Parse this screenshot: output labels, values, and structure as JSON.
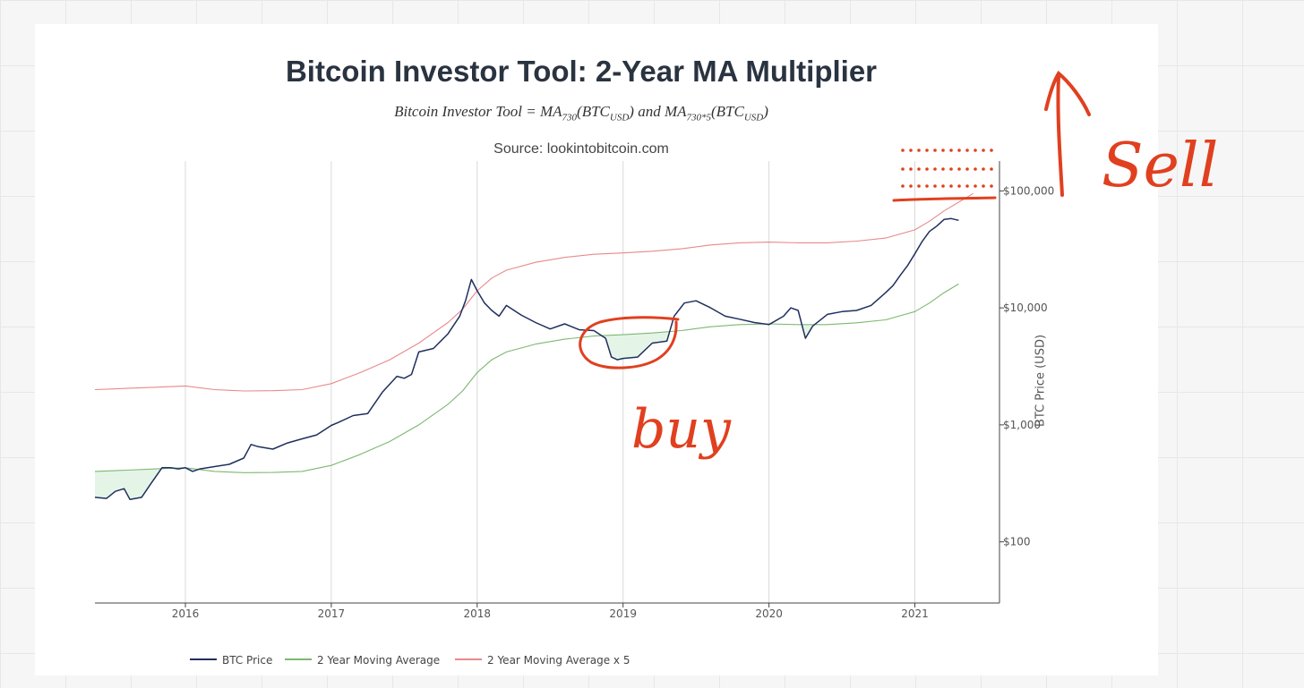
{
  "chart_data": {
    "type": "line",
    "title": "Bitcoin Investor Tool: 2-Year MA Multiplier",
    "subtitle": "Bitcoin Investor Tool = MA730(BTCUSD) and MA730*5(BTCUSD)",
    "source": "Source: lookintobitcoin.com",
    "ylabel": "BTC Price (USD)",
    "yscale": "log",
    "ylim": [
      30,
      180000
    ],
    "xlim": [
      2015.38,
      2021.58
    ],
    "x_ticks": [
      {
        "value": 2016,
        "label": "2016"
      },
      {
        "value": 2017,
        "label": "2017"
      },
      {
        "value": 2018,
        "label": "2018"
      },
      {
        "value": 2019,
        "label": "2019"
      },
      {
        "value": 2020,
        "label": "2020"
      },
      {
        "value": 2021,
        "label": "2021"
      }
    ],
    "y_ticks": [
      {
        "value": 100,
        "label": "$100"
      },
      {
        "value": 1000,
        "label": "$1,000"
      },
      {
        "value": 10000,
        "label": "$10,000"
      },
      {
        "value": 100000,
        "label": "$100,000"
      }
    ],
    "series": [
      {
        "name": "BTC Price",
        "color": "#1f2f5e",
        "x": [
          2015.38,
          2015.46,
          2015.52,
          2015.58,
          2015.62,
          2015.7,
          2015.76,
          2015.84,
          2015.9,
          2015.95,
          2016.0,
          2016.05,
          2016.1,
          2016.2,
          2016.3,
          2016.4,
          2016.45,
          2016.5,
          2016.6,
          2016.7,
          2016.8,
          2016.9,
          2017.0,
          2017.05,
          2017.15,
          2017.25,
          2017.35,
          2017.45,
          2017.5,
          2017.55,
          2017.6,
          2017.7,
          2017.8,
          2017.88,
          2017.92,
          2017.96,
          2018.0,
          2018.05,
          2018.1,
          2018.15,
          2018.2,
          2018.3,
          2018.4,
          2018.5,
          2018.6,
          2018.7,
          2018.8,
          2018.88,
          2018.92,
          2018.96,
          2019.0,
          2019.1,
          2019.2,
          2019.3,
          2019.35,
          2019.42,
          2019.5,
          2019.6,
          2019.7,
          2019.8,
          2019.9,
          2020.0,
          2020.1,
          2020.15,
          2020.2,
          2020.25,
          2020.3,
          2020.4,
          2020.5,
          2020.6,
          2020.7,
          2020.8,
          2020.85,
          2020.9,
          2020.95,
          2021.0,
          2021.05,
          2021.1,
          2021.15,
          2021.2,
          2021.25,
          2021.3
        ],
        "values": [
          240,
          235,
          270,
          285,
          230,
          240,
          310,
          430,
          430,
          420,
          430,
          400,
          420,
          440,
          460,
          520,
          680,
          650,
          620,
          700,
          760,
          820,
          990,
          1050,
          1200,
          1250,
          1900,
          2600,
          2500,
          2700,
          4200,
          4500,
          6000,
          8500,
          11500,
          17500,
          14000,
          11000,
          9500,
          8500,
          10500,
          8700,
          7500,
          6600,
          7300,
          6500,
          6400,
          5500,
          3800,
          3600,
          3700,
          3800,
          5000,
          5200,
          8500,
          11000,
          11500,
          10000,
          8500,
          8000,
          7500,
          7200,
          8500,
          10000,
          9500,
          5500,
          7000,
          8800,
          9300,
          9500,
          10500,
          13500,
          15500,
          19000,
          23000,
          29000,
          37000,
          45000,
          50000,
          57000,
          58000,
          56000
        ]
      },
      {
        "name": "2 Year Moving Average",
        "color": "#7cb870",
        "x": [
          2015.38,
          2015.6,
          2015.8,
          2016.0,
          2016.2,
          2016.4,
          2016.6,
          2016.8,
          2017.0,
          2017.2,
          2017.4,
          2017.6,
          2017.8,
          2017.9,
          2018.0,
          2018.1,
          2018.2,
          2018.4,
          2018.6,
          2018.8,
          2019.0,
          2019.2,
          2019.4,
          2019.6,
          2019.8,
          2020.0,
          2020.2,
          2020.4,
          2020.6,
          2020.8,
          2021.0,
          2021.1,
          2021.2,
          2021.3
        ],
        "values": [
          400,
          410,
          420,
          430,
          400,
          390,
          392,
          400,
          450,
          560,
          720,
          1000,
          1500,
          1950,
          2800,
          3600,
          4200,
          4900,
          5400,
          5750,
          5900,
          6100,
          6400,
          6900,
          7200,
          7300,
          7200,
          7200,
          7450,
          7900,
          9300,
          11000,
          13500,
          16000
        ]
      },
      {
        "name": "2 Year Moving Average x 5",
        "color": "#e8898b",
        "x": [
          2015.38,
          2015.6,
          2015.8,
          2016.0,
          2016.2,
          2016.4,
          2016.6,
          2016.8,
          2017.0,
          2017.2,
          2017.4,
          2017.6,
          2017.8,
          2017.9,
          2018.0,
          2018.1,
          2018.2,
          2018.4,
          2018.6,
          2018.8,
          2019.0,
          2019.2,
          2019.4,
          2019.6,
          2019.8,
          2020.0,
          2020.2,
          2020.4,
          2020.6,
          2020.8,
          2021.0,
          2021.1,
          2021.2,
          2021.3,
          2021.4
        ],
        "values": [
          2000,
          2050,
          2100,
          2150,
          2000,
          1950,
          1960,
          2000,
          2250,
          2800,
          3600,
          5000,
          7500,
          9750,
          14000,
          18000,
          21000,
          24500,
          27000,
          28750,
          29500,
          30500,
          32000,
          34500,
          36000,
          36500,
          36000,
          36000,
          37250,
          39500,
          46500,
          55000,
          67500,
          80000,
          95000
        ]
      }
    ],
    "legend": {
      "position": "bottom-left",
      "items": [
        {
          "label": "BTC Price",
          "color": "#1f2f5e"
        },
        {
          "label": "2 Year Moving Average",
          "color": "#7cb870"
        },
        {
          "label": "2 Year Moving Average x 5",
          "color": "#e8898b"
        }
      ]
    },
    "annotations": [
      {
        "text": "buy",
        "color": "#e0401f"
      },
      {
        "text": "Sell",
        "color": "#e0401f"
      }
    ]
  }
}
